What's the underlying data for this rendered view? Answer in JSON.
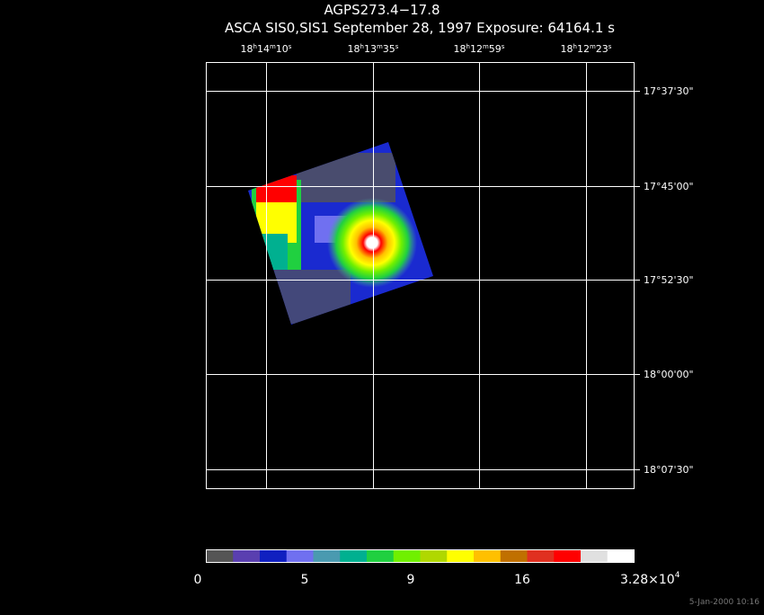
{
  "header": {
    "title": "AGPS273.4−17.8",
    "subtitle": "ASCA SIS0,SIS1 September 28, 1997 Exposure: 64164.1 s"
  },
  "ra_units": [
    "h",
    "m",
    "s"
  ],
  "ra_labels": [
    {
      "h": "18",
      "m": "14",
      "s": "10"
    },
    {
      "h": "18",
      "m": "13",
      "s": "35"
    },
    {
      "h": "18",
      "m": "12",
      "s": "59"
    },
    {
      "h": "18",
      "m": "12",
      "s": "23"
    }
  ],
  "dec_labels": [
    "17°37'30\"",
    "17°45'00\"",
    "17°52'30\"",
    "18°00'00\"",
    "18°07'30\""
  ],
  "colorbar": {
    "labels": [
      "0",
      "5",
      "9",
      "16"
    ],
    "max": {
      "mantissa": "3.28×10",
      "exponent": "4"
    }
  },
  "timestamp": "5-Jan-2000 10:16"
}
